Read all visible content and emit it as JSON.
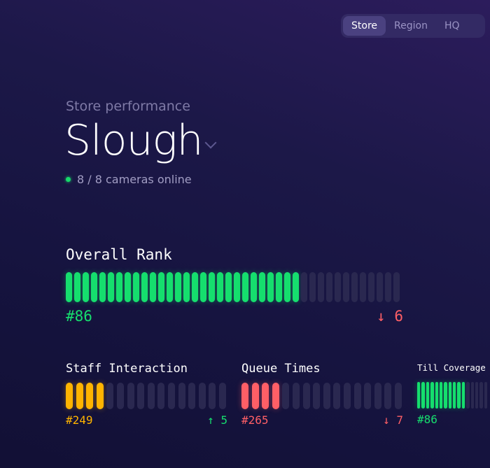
{
  "nav": {
    "tabs": [
      {
        "label": "Store",
        "active": true
      },
      {
        "label": "Region",
        "active": false
      },
      {
        "label": "HQ",
        "active": false
      }
    ]
  },
  "header": {
    "subtitle": "Store performance",
    "store": "Slough",
    "status": "8 / 8 cameras online"
  },
  "colors": {
    "green": "#16de6e",
    "amber": "#ffb400",
    "red": "#ff5f66",
    "up": "#16de6e",
    "down": "#ff5f66"
  },
  "metrics": {
    "overall": {
      "label": "Overall Rank",
      "rank": "#86",
      "change": "6",
      "direction": "down",
      "arrow": "↓",
      "segments": 40,
      "filled": 28,
      "color": "#16de6e"
    },
    "staff": {
      "label": "Staff Interaction",
      "rank": "#249",
      "change": "5",
      "direction": "up",
      "arrow": "↑",
      "segments": 16,
      "filled": 4,
      "color": "#ffb400"
    },
    "queue": {
      "label": "Queue Times",
      "rank": "#265",
      "change": "7",
      "direction": "down",
      "arrow": "↓",
      "segments": 16,
      "filled": 4,
      "color": "#ff5f66"
    },
    "till": {
      "label": "Till Coverage",
      "rank": "#86",
      "segments": 16,
      "filled": 11,
      "color": "#16de6e"
    }
  }
}
